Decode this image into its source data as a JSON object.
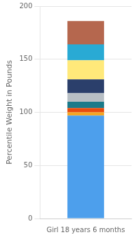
{
  "chart_data": {
    "type": "bar",
    "stacked": true,
    "categories": [
      "Girl 18 years 6 months"
    ],
    "ylabel": "Percentile Weight in Pounds",
    "series": [
      {
        "color": "#4d9fec",
        "values": [
          97
        ]
      },
      {
        "color": "#f5a623",
        "values": [
          3
        ]
      },
      {
        "color": "#e84c0e",
        "values": [
          4
        ]
      },
      {
        "color": "#1a7a8a",
        "values": [
          6
        ]
      },
      {
        "color": "#b8bfc5",
        "values": [
          8
        ]
      },
      {
        "color": "#2b3f6b",
        "values": [
          13
        ]
      },
      {
        "color": "#ffe97a",
        "values": [
          18
        ]
      },
      {
        "color": "#29aad4",
        "values": [
          15
        ]
      },
      {
        "color": "#b5674e",
        "values": [
          22
        ]
      }
    ],
    "ylim": [
      0,
      200
    ],
    "yticks": [
      0,
      50,
      100,
      150,
      200
    ],
    "grid": true
  }
}
